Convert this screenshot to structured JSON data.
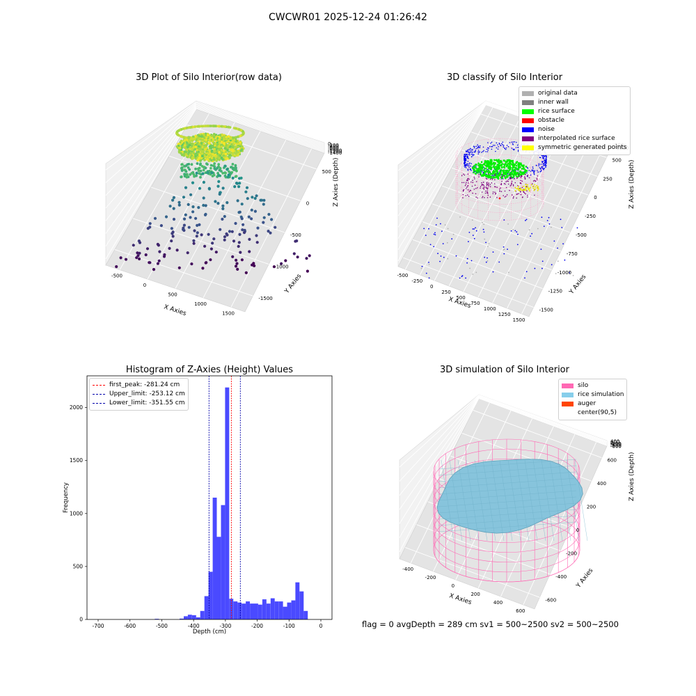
{
  "figure": {
    "title": "CWCWR01 2025-12-24 01:26:42",
    "footer": "flag = 0     avgDepth = 289 cm  sv1 = 500~2500  sv2 = 500~2500"
  },
  "chart_data": [
    {
      "type": "scatter",
      "title": "3D Plot of Silo Interior(row data)",
      "xlabel": "X Axies",
      "ylabel": "Y Axies",
      "zlabel": "Z Axies (Depth)",
      "x_ticks": [
        "-500",
        "0",
        "500",
        "1000",
        "1500"
      ],
      "y_ticks": [
        "-1500",
        "-1000",
        "-500",
        "0",
        "500"
      ],
      "z_ticks": [
        "-1400",
        "-1200",
        "-1000",
        "-800",
        "-600",
        "-400",
        "-200",
        "0"
      ],
      "xlim": [
        -600,
        1600
      ],
      "ylim": [
        -1600,
        700
      ],
      "zlim": [
        -1450,
        50
      ],
      "colormap": "viridis",
      "grid": true
    },
    {
      "type": "scatter",
      "title": "3D classify of Silo Interior",
      "xlabel": "X Axies",
      "ylabel": "Y Axies",
      "zlabel": "Z Axies (Depth)",
      "x_ticks": [
        "-500",
        "-250",
        "0",
        "250",
        "500",
        "750",
        "1000",
        "1250",
        "1500"
      ],
      "y_ticks": [
        "-1500",
        "-1250",
        "-1000",
        "-750",
        "-500",
        "-250",
        "0",
        "250",
        "500"
      ],
      "z_ticks": [
        "-1500",
        "-1250",
        "-1000",
        "-750",
        "-500",
        "-250",
        "0",
        "250",
        "500"
      ],
      "legend_position": "upper-right",
      "legend": [
        {
          "label": "original data",
          "color": "#b0b0b0"
        },
        {
          "label": "inner wall",
          "color": "#808080"
        },
        {
          "label": "rice surface",
          "color": "#00ff00"
        },
        {
          "label": "obstacle",
          "color": "#ff0000"
        },
        {
          "label": "noise",
          "color": "#0000ff"
        },
        {
          "label": "interpolated rice surface",
          "color": "#800080"
        },
        {
          "label": "symmetric generated points",
          "color": "#ffff00"
        }
      ],
      "grid": true
    },
    {
      "type": "bar",
      "title": "Histogram of Z-Axies (Height) Values",
      "xlabel": "Depth (cm)",
      "ylabel": "Frequency",
      "xlim": [
        -735,
        35
      ],
      "ylim": [
        0,
        2300
      ],
      "x_ticks": [
        -700,
        -600,
        -500,
        -400,
        -300,
        -200,
        -100,
        0
      ],
      "y_ticks": [
        0,
        500,
        1000,
        1500,
        2000
      ],
      "bar_color": "#4a4aff",
      "bins": [
        {
          "x0": -522,
          "x1": -509,
          "count": 6
        },
        {
          "x0": -444,
          "x1": -431,
          "count": 8
        },
        {
          "x0": -431,
          "x1": -418,
          "count": 30
        },
        {
          "x0": -418,
          "x1": -405,
          "count": 45
        },
        {
          "x0": -405,
          "x1": -392,
          "count": 40
        },
        {
          "x0": -392,
          "x1": -379,
          "count": 20
        },
        {
          "x0": -379,
          "x1": -366,
          "count": 80
        },
        {
          "x0": -366,
          "x1": -353,
          "count": 220
        },
        {
          "x0": -353,
          "x1": -340,
          "count": 450
        },
        {
          "x0": -340,
          "x1": -327,
          "count": 1150
        },
        {
          "x0": -327,
          "x1": -314,
          "count": 780
        },
        {
          "x0": -314,
          "x1": -301,
          "count": 1080
        },
        {
          "x0": -301,
          "x1": -288,
          "count": 2190
        },
        {
          "x0": -288,
          "x1": -275,
          "count": 195
        },
        {
          "x0": -275,
          "x1": -262,
          "count": 170
        },
        {
          "x0": -262,
          "x1": -249,
          "count": 160
        },
        {
          "x0": -249,
          "x1": -236,
          "count": 150
        },
        {
          "x0": -236,
          "x1": -223,
          "count": 170
        },
        {
          "x0": -223,
          "x1": -210,
          "count": 150
        },
        {
          "x0": -210,
          "x1": -197,
          "count": 150
        },
        {
          "x0": -197,
          "x1": -184,
          "count": 140
        },
        {
          "x0": -184,
          "x1": -171,
          "count": 190
        },
        {
          "x0": -171,
          "x1": -158,
          "count": 150
        },
        {
          "x0": -158,
          "x1": -145,
          "count": 200
        },
        {
          "x0": -145,
          "x1": -132,
          "count": 170
        },
        {
          "x0": -132,
          "x1": -119,
          "count": 170
        },
        {
          "x0": -119,
          "x1": -106,
          "count": 120
        },
        {
          "x0": -106,
          "x1": -93,
          "count": 160
        },
        {
          "x0": -93,
          "x1": -80,
          "count": 180
        },
        {
          "x0": -80,
          "x1": -67,
          "count": 350
        },
        {
          "x0": -67,
          "x1": -54,
          "count": 265
        },
        {
          "x0": -54,
          "x1": -41,
          "count": 80
        }
      ],
      "vlines": [
        {
          "label": "first_peak: -281.24 cm",
          "value": -281.24,
          "color": "#ff0000"
        },
        {
          "label": "Upper_limit: -253.12 cm",
          "value": -253.12,
          "color": "#0000aa"
        },
        {
          "label": "Lower_limit: -351.55 cm",
          "value": -351.55,
          "color": "#0000aa"
        }
      ],
      "legend_position": "upper-left"
    },
    {
      "type": "scatter",
      "title": "3D simulation of Silo Interior",
      "xlabel": "X Axies",
      "ylabel": "Y Axies",
      "zlabel": "Z Axies (Depth)",
      "x_ticks": [
        "-400",
        "-200",
        "0",
        "200",
        "400",
        "600"
      ],
      "y_ticks": [
        "-600",
        "-400",
        "-200",
        "0",
        "200",
        "400",
        "600"
      ],
      "z_ticks": [
        "-800",
        "-600",
        "-400",
        "-200",
        "0",
        "200",
        "400"
      ],
      "legend_position": "upper-right",
      "legend": [
        {
          "label": "silo",
          "color": "#ff69b4"
        },
        {
          "label": "rice simulation",
          "color": "#87ceeb"
        },
        {
          "label": "auger",
          "color": "#ff4500"
        },
        {
          "label": "center(90,5)",
          "color": ""
        }
      ],
      "grid": true
    }
  ]
}
